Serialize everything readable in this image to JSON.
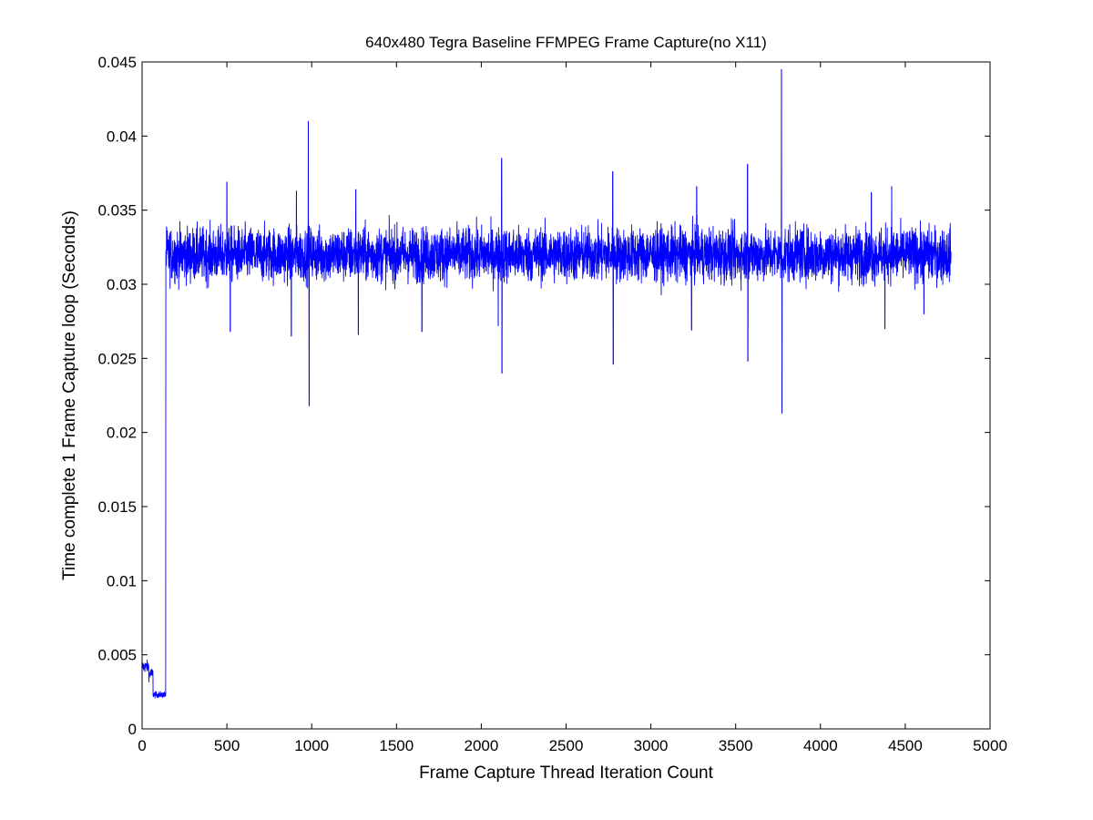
{
  "chart_data": {
    "type": "line",
    "title": "640x480 Tegra Baseline FFMPEG Frame Capture(no X11)",
    "xlabel": "Frame Capture Thread Iteration Count",
    "ylabel": "Time complete 1 Frame Capture loop (Seconds)",
    "xlim": [
      0,
      5000
    ],
    "ylim": [
      0,
      0.045
    ],
    "xticks": [
      0,
      500,
      1000,
      1500,
      2000,
      2500,
      3000,
      3500,
      4000,
      4500,
      5000
    ],
    "yticks": [
      0,
      0.005,
      0.01,
      0.015,
      0.02,
      0.025,
      0.03,
      0.035,
      0.04,
      0.045
    ],
    "xtick_labels": [
      "0",
      "500",
      "1000",
      "1500",
      "2000",
      "2500",
      "3000",
      "3500",
      "4000",
      "4500",
      "5000"
    ],
    "ytick_labels": [
      "0",
      "0.005",
      "0.01",
      "0.015",
      "0.02",
      "0.025",
      "0.03",
      "0.035",
      "0.04",
      "0.045"
    ],
    "grid": false,
    "legend": "none",
    "series": [
      {
        "color": "#0000ff",
        "x_range": [
          1,
          4770
        ],
        "segments": [
          {
            "x_start": 1,
            "x_end": 40,
            "y_mean": 0.0042,
            "y_noise": 0.0002
          },
          {
            "x_start": 40,
            "x_end": 65,
            "y_mean": 0.0037,
            "y_noise": 0.0002
          },
          {
            "x_start": 65,
            "x_end": 140,
            "y_mean": 0.0023,
            "y_noise": 0.0001
          },
          {
            "x_start": 140,
            "x_end": 4770,
            "y_mean": 0.032,
            "y_noise": 0.0009
          }
        ],
        "spikes": [
          {
            "x": 145,
            "y": 0.0338
          },
          {
            "x": 500,
            "y": 0.0369
          },
          {
            "x": 520,
            "y": 0.0268
          },
          {
            "x": 880,
            "y": 0.0265
          },
          {
            "x": 910,
            "y": 0.0363
          },
          {
            "x": 980,
            "y": 0.041
          },
          {
            "x": 985,
            "y": 0.0218
          },
          {
            "x": 1260,
            "y": 0.0364
          },
          {
            "x": 1275,
            "y": 0.0266
          },
          {
            "x": 1650,
            "y": 0.0268
          },
          {
            "x": 2100,
            "y": 0.0272
          },
          {
            "x": 2120,
            "y": 0.0385
          },
          {
            "x": 2122,
            "y": 0.024
          },
          {
            "x": 2775,
            "y": 0.0376
          },
          {
            "x": 2778,
            "y": 0.0246
          },
          {
            "x": 3240,
            "y": 0.0269
          },
          {
            "x": 3270,
            "y": 0.0366
          },
          {
            "x": 3570,
            "y": 0.0381
          },
          {
            "x": 3572,
            "y": 0.0248
          },
          {
            "x": 3770,
            "y": 0.0445
          },
          {
            "x": 3773,
            "y": 0.0213
          },
          {
            "x": 4300,
            "y": 0.0362
          },
          {
            "x": 4380,
            "y": 0.027
          },
          {
            "x": 4420,
            "y": 0.0366
          },
          {
            "x": 4610,
            "y": 0.028
          }
        ]
      }
    ]
  }
}
